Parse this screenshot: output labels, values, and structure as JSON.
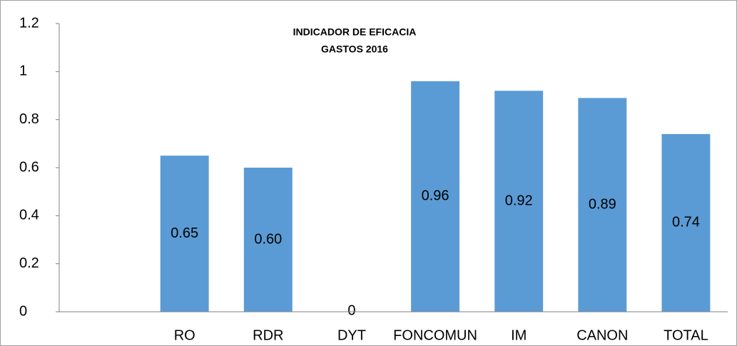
{
  "chart_data": {
    "type": "bar",
    "title": "INDICADOR DE EFICACIA",
    "subtitle": "GASTOS 2016",
    "categories": [
      null,
      "RO",
      "RDR",
      "DYT",
      "FONCOMUN",
      "IM",
      "CANON",
      "TOTAL"
    ],
    "values": [
      null,
      0.65,
      0.6,
      0,
      0.96,
      0.92,
      0.89,
      0.74
    ],
    "value_labels": [
      null,
      "0.65",
      "0.60",
      "0",
      "0.96",
      "0.92",
      "0.89",
      "0.74"
    ],
    "color": "#5b9bd5",
    "ylim": [
      0,
      1.2
    ],
    "yticks": [
      0,
      0.2,
      0.4,
      0.6,
      0.8,
      1,
      1.2
    ],
    "grid": false
  }
}
